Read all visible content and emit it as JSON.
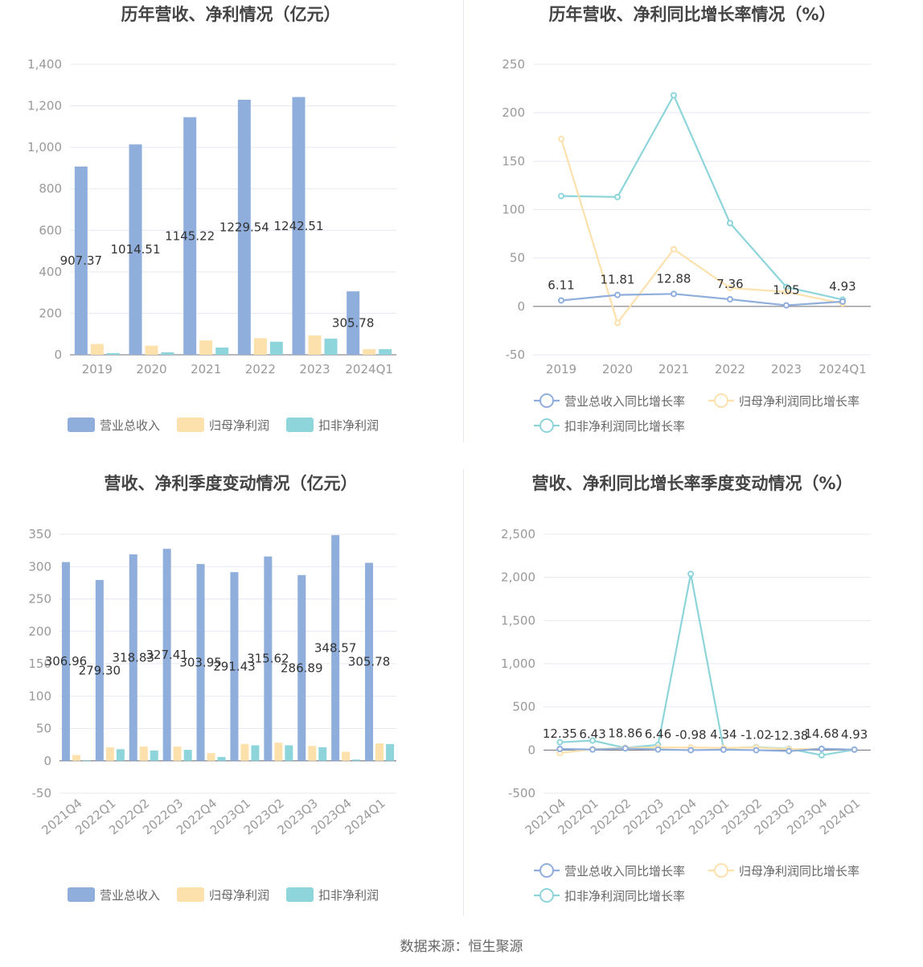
{
  "source": "数据来源：恒生聚源",
  "colors": {
    "revenue": "#8faedc",
    "netprofit": "#fde1ad",
    "deducted": "#8dd5da"
  },
  "chart_data": [
    {
      "id": "annual-amount",
      "type": "bar",
      "title": "历年营收、净利情况（亿元）",
      "categories": [
        "2019",
        "2020",
        "2021",
        "2022",
        "2023",
        "2024Q1"
      ],
      "series": [
        {
          "name": "营业总收入",
          "values": [
            907.37,
            1014.51,
            1145.22,
            1229.54,
            1242.51,
            305.78
          ],
          "color": "#8faedc"
        },
        {
          "name": "归母净利润",
          "values": [
            52,
            44,
            69,
            80,
            93,
            27
          ],
          "color": "#fde1ad"
        },
        {
          "name": "扣非净利润",
          "values": [
            8,
            12,
            35,
            63,
            78,
            27
          ],
          "color": "#8dd5da"
        }
      ],
      "data_labels": [
        "907.37",
        "1014.51",
        "1145.22",
        "1229.54",
        "1242.51",
        "305.78"
      ],
      "ylim": [
        0,
        1400
      ],
      "yticks": [
        0,
        200,
        400,
        600,
        800,
        1000,
        1200,
        1400
      ],
      "ytick_labels": [
        "0",
        "200",
        "400",
        "600",
        "800",
        "1,000",
        "1,200",
        "1,400"
      ],
      "legend": "bottom"
    },
    {
      "id": "annual-growth",
      "type": "line",
      "title": "历年营收、净利同比增长率情况（%）",
      "categories": [
        "2019",
        "2020",
        "2021",
        "2022",
        "2023",
        "2024Q1"
      ],
      "series": [
        {
          "name": "营业总收入同比增长率",
          "values": [
            6.11,
            11.81,
            12.88,
            7.36,
            1.05,
            4.93
          ],
          "color": "#8faedc"
        },
        {
          "name": "归母净利润同比增长率",
          "values": [
            173,
            -17,
            59,
            19,
            15,
            3
          ],
          "color": "#fde1ad"
        },
        {
          "name": "扣非净利润同比增长率",
          "values": [
            114,
            113,
            218,
            86,
            20,
            7
          ],
          "color": "#8dd5da"
        }
      ],
      "data_labels": [
        "6.11",
        "11.81",
        "12.88",
        "7.36",
        "1.05",
        "4.93"
      ],
      "ylim": [
        -50,
        250
      ],
      "yticks": [
        -50,
        0,
        50,
        100,
        150,
        200,
        250
      ],
      "ytick_labels": [
        "-50",
        "0",
        "50",
        "100",
        "150",
        "200",
        "250"
      ],
      "legend": "bottom"
    },
    {
      "id": "quarterly-amount",
      "type": "bar",
      "title": "营收、净利季度变动情况（亿元）",
      "categories": [
        "2021Q4",
        "2022Q1",
        "2022Q2",
        "2022Q3",
        "2022Q4",
        "2023Q1",
        "2023Q2",
        "2023Q3",
        "2023Q4",
        "2024Q1"
      ],
      "series": [
        {
          "name": "营业总收入",
          "values": [
            306.96,
            279.3,
            318.83,
            327.41,
            303.95,
            291.43,
            315.62,
            286.89,
            348.57,
            305.78
          ],
          "color": "#8faedc"
        },
        {
          "name": "归母净利润",
          "values": [
            9,
            21,
            22,
            22,
            12,
            26,
            28,
            23,
            14,
            27
          ],
          "color": "#fde1ad"
        },
        {
          "name": "扣非净利润",
          "values": [
            -1,
            18,
            16,
            17,
            6,
            24,
            24,
            21,
            2,
            26
          ],
          "color": "#8dd5da"
        }
      ],
      "data_labels": [
        "306.96",
        "279.30",
        "318.83",
        "327.41",
        "303.95",
        "291.43",
        "315.62",
        "286.89",
        "348.57",
        "305.78"
      ],
      "ylim": [
        -50,
        350
      ],
      "yticks": [
        -50,
        0,
        50,
        100,
        150,
        200,
        250,
        300,
        350
      ],
      "ytick_labels": [
        "-50",
        "0",
        "50",
        "100",
        "150",
        "200",
        "250",
        "300",
        "350"
      ],
      "legend": "bottom"
    },
    {
      "id": "quarterly-growth",
      "type": "line",
      "title": "营收、净利同比增长率季度变动情况（%）",
      "categories": [
        "2021Q4",
        "2022Q1",
        "2022Q2",
        "2022Q3",
        "2022Q4",
        "2023Q1",
        "2023Q2",
        "2023Q3",
        "2023Q4",
        "2024Q1"
      ],
      "series": [
        {
          "name": "营业总收入同比增长率",
          "values": [
            12.35,
            6.43,
            18.86,
            6.46,
            -0.98,
            4.34,
            -1.02,
            -12.38,
            14.68,
            4.93
          ],
          "color": "#8faedc"
        },
        {
          "name": "归母净利润同比增长率",
          "values": [
            -35,
            10,
            25,
            30,
            30,
            25,
            30,
            10,
            15,
            5
          ],
          "color": "#fde1ad"
        },
        {
          "name": "扣非净利润同比增长率",
          "values": [
            90,
            110,
            25,
            60,
            2040,
            20,
            35,
            15,
            -60,
            5
          ],
          "color": "#8dd5da"
        }
      ],
      "data_labels": [
        "12.35",
        "6.43",
        "18.86",
        "6.46",
        "-0.98",
        "4.34",
        "-1.02",
        "-12.38",
        "14.68",
        "4.93"
      ],
      "ylim": [
        -500,
        2500
      ],
      "yticks": [
        -500,
        0,
        500,
        1000,
        1500,
        2000,
        2500
      ],
      "ytick_labels": [
        "-500",
        "0",
        "500",
        "1,000",
        "1,500",
        "2,000",
        "2,500"
      ],
      "legend": "bottom"
    }
  ]
}
